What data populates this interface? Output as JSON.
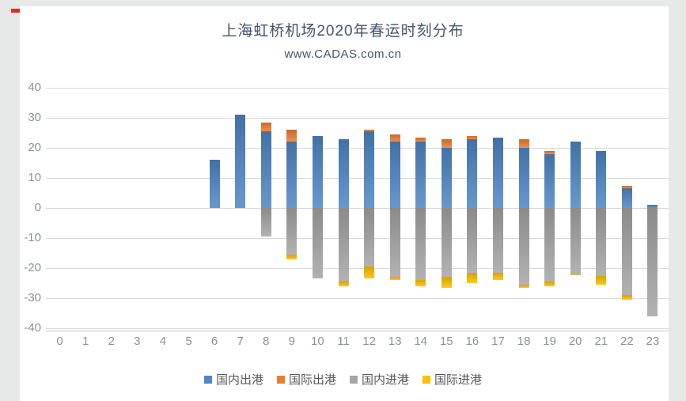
{
  "page": {
    "title": "上海虹桥机场2020年春运时刻分布",
    "subtitle": "www.CADAS.com.cn"
  },
  "colors": {
    "title_text": "#44546a",
    "axis_label_text": "#8b9196",
    "legend_text": "#595959",
    "gridline": "#d9d9d9",
    "series_blue": "#4f86c6",
    "series_orange": "#ed7d31",
    "series_gray": "#a5a5a5",
    "series_yellow": "#ffc000"
  },
  "chart_data": {
    "type": "bar",
    "stacked": true,
    "title": "上海虹桥机场2020年春运时刻分布",
    "subtitle": "www.CADAS.com.cn",
    "xlabel": "",
    "ylabel": "",
    "categories": [
      0,
      1,
      2,
      3,
      4,
      5,
      6,
      7,
      8,
      9,
      10,
      11,
      12,
      13,
      14,
      15,
      16,
      17,
      18,
      19,
      20,
      21,
      22,
      23
    ],
    "series": [
      {
        "name": "国内出港",
        "color": "#4f86c6",
        "values": [
          0,
          0,
          0,
          0,
          0,
          0,
          16,
          31,
          25.5,
          22,
          24,
          23,
          25.5,
          22,
          22,
          20,
          23,
          23.5,
          20,
          18,
          22,
          19,
          6.5,
          1
        ]
      },
      {
        "name": "国际出港",
        "color": "#ed7d31",
        "values": [
          0,
          0,
          0,
          0,
          0,
          0,
          0,
          0,
          3,
          4,
          0,
          0,
          0.5,
          2.5,
          1.5,
          3,
          1,
          0,
          3,
          1,
          0,
          0,
          1,
          0
        ]
      },
      {
        "name": "国内进港",
        "color": "#a5a5a5",
        "values": [
          0,
          0,
          0,
          0,
          0,
          0,
          0,
          0,
          -9.5,
          -15.5,
          -23.5,
          -24.5,
          -19.5,
          -23,
          -24,
          -23,
          -21.5,
          -21.5,
          -25.5,
          -24.5,
          -22,
          -22.5,
          -29,
          -36
        ]
      },
      {
        "name": "国际进港",
        "color": "#ffc000",
        "values": [
          0,
          0,
          0,
          0,
          0,
          0,
          0,
          0,
          0,
          -1.5,
          0,
          -1.5,
          -4,
          -1,
          -2,
          -3.5,
          -3.5,
          -2.5,
          -1,
          -1.5,
          -0.5,
          -3,
          -1.5,
          0
        ]
      }
    ],
    "ylim": [
      -40,
      40
    ],
    "yticks": [
      40,
      30,
      20,
      10,
      0,
      -10,
      -20,
      -30,
      -40
    ],
    "grid": true,
    "legend_position": "bottom"
  }
}
